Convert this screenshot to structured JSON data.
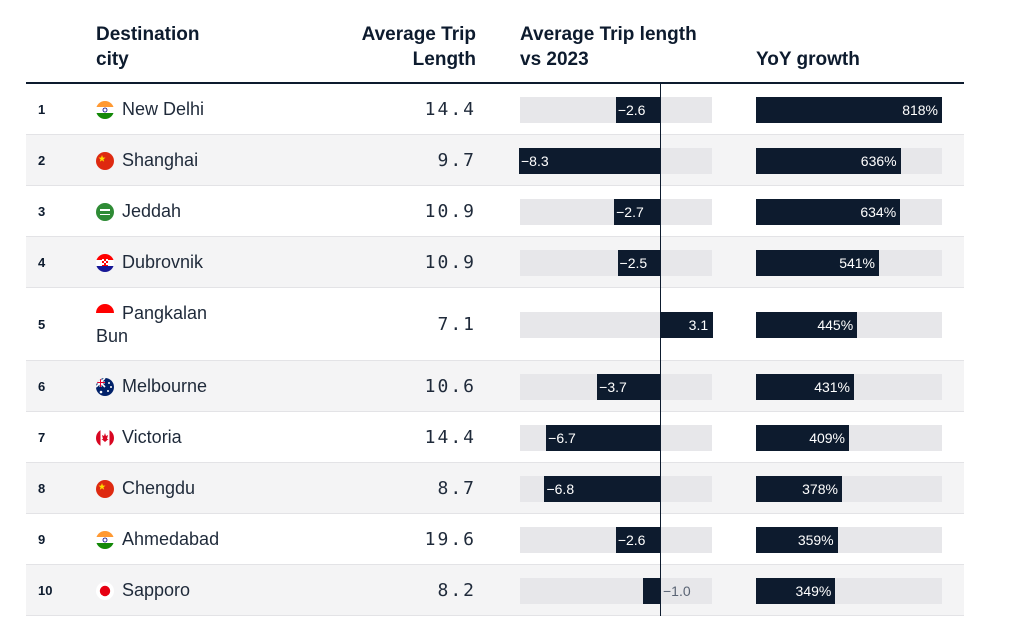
{
  "header": {
    "city": "Destination\ncity",
    "avg": "Average Trip\nLength",
    "vs": "Average Trip length\nvs 2023",
    "yoy": "YoY growth"
  },
  "chart_data": {
    "type": "table",
    "columns": [
      "Destination city",
      "Average Trip Length",
      "Average Trip length vs 2023",
      "YoY growth"
    ],
    "vs_range": [
      -8.3,
      3.1
    ],
    "yoy_max": 818,
    "rows": [
      {
        "rank": "1",
        "city": "New Delhi",
        "flag": "india",
        "avg": "14.4",
        "vs": -2.6,
        "vs_label": "−2.6",
        "yoy": 818,
        "yoy_label": "818%"
      },
      {
        "rank": "2",
        "city": "Shanghai",
        "flag": "china",
        "avg": "9.7",
        "vs": -8.3,
        "vs_label": "−8.3",
        "yoy": 636,
        "yoy_label": "636%"
      },
      {
        "rank": "3",
        "city": "Jeddah",
        "flag": "saudi-arabia",
        "avg": "10.9",
        "vs": -2.7,
        "vs_label": "−2.7",
        "yoy": 634,
        "yoy_label": "634%"
      },
      {
        "rank": "4",
        "city": "Dubrovnik",
        "flag": "croatia",
        "avg": "10.9",
        "vs": -2.5,
        "vs_label": "−2.5",
        "yoy": 541,
        "yoy_label": "541%"
      },
      {
        "rank": "5",
        "city": "Pangkalan\nBun",
        "flag": "indonesia",
        "avg": "7.1",
        "vs": 3.1,
        "vs_label": "3.1",
        "yoy": 445,
        "yoy_label": "445%"
      },
      {
        "rank": "6",
        "city": "Melbourne",
        "flag": "australia",
        "avg": "10.6",
        "vs": -3.7,
        "vs_label": "−3.7",
        "yoy": 431,
        "yoy_label": "431%"
      },
      {
        "rank": "7",
        "city": "Victoria",
        "flag": "canada",
        "avg": "14.4",
        "vs": -6.7,
        "vs_label": "−6.7",
        "yoy": 409,
        "yoy_label": "409%"
      },
      {
        "rank": "8",
        "city": "Chengdu",
        "flag": "china",
        "avg": "8.7",
        "vs": -6.8,
        "vs_label": "−6.8",
        "yoy": 378,
        "yoy_label": "378%"
      },
      {
        "rank": "9",
        "city": "Ahmedabad",
        "flag": "india",
        "avg": "19.6",
        "vs": -2.6,
        "vs_label": "−2.6",
        "yoy": 359,
        "yoy_label": "359%"
      },
      {
        "rank": "10",
        "city": "Sapporo",
        "flag": "japan",
        "avg": "8.2",
        "vs": -1.0,
        "vs_label": "−1.0",
        "yoy": 349,
        "yoy_label": "349%"
      }
    ]
  },
  "colors": {
    "bar": "#0d1b2e",
    "track": "#e7e7ea",
    "row_alt": "#f4f4f5"
  }
}
